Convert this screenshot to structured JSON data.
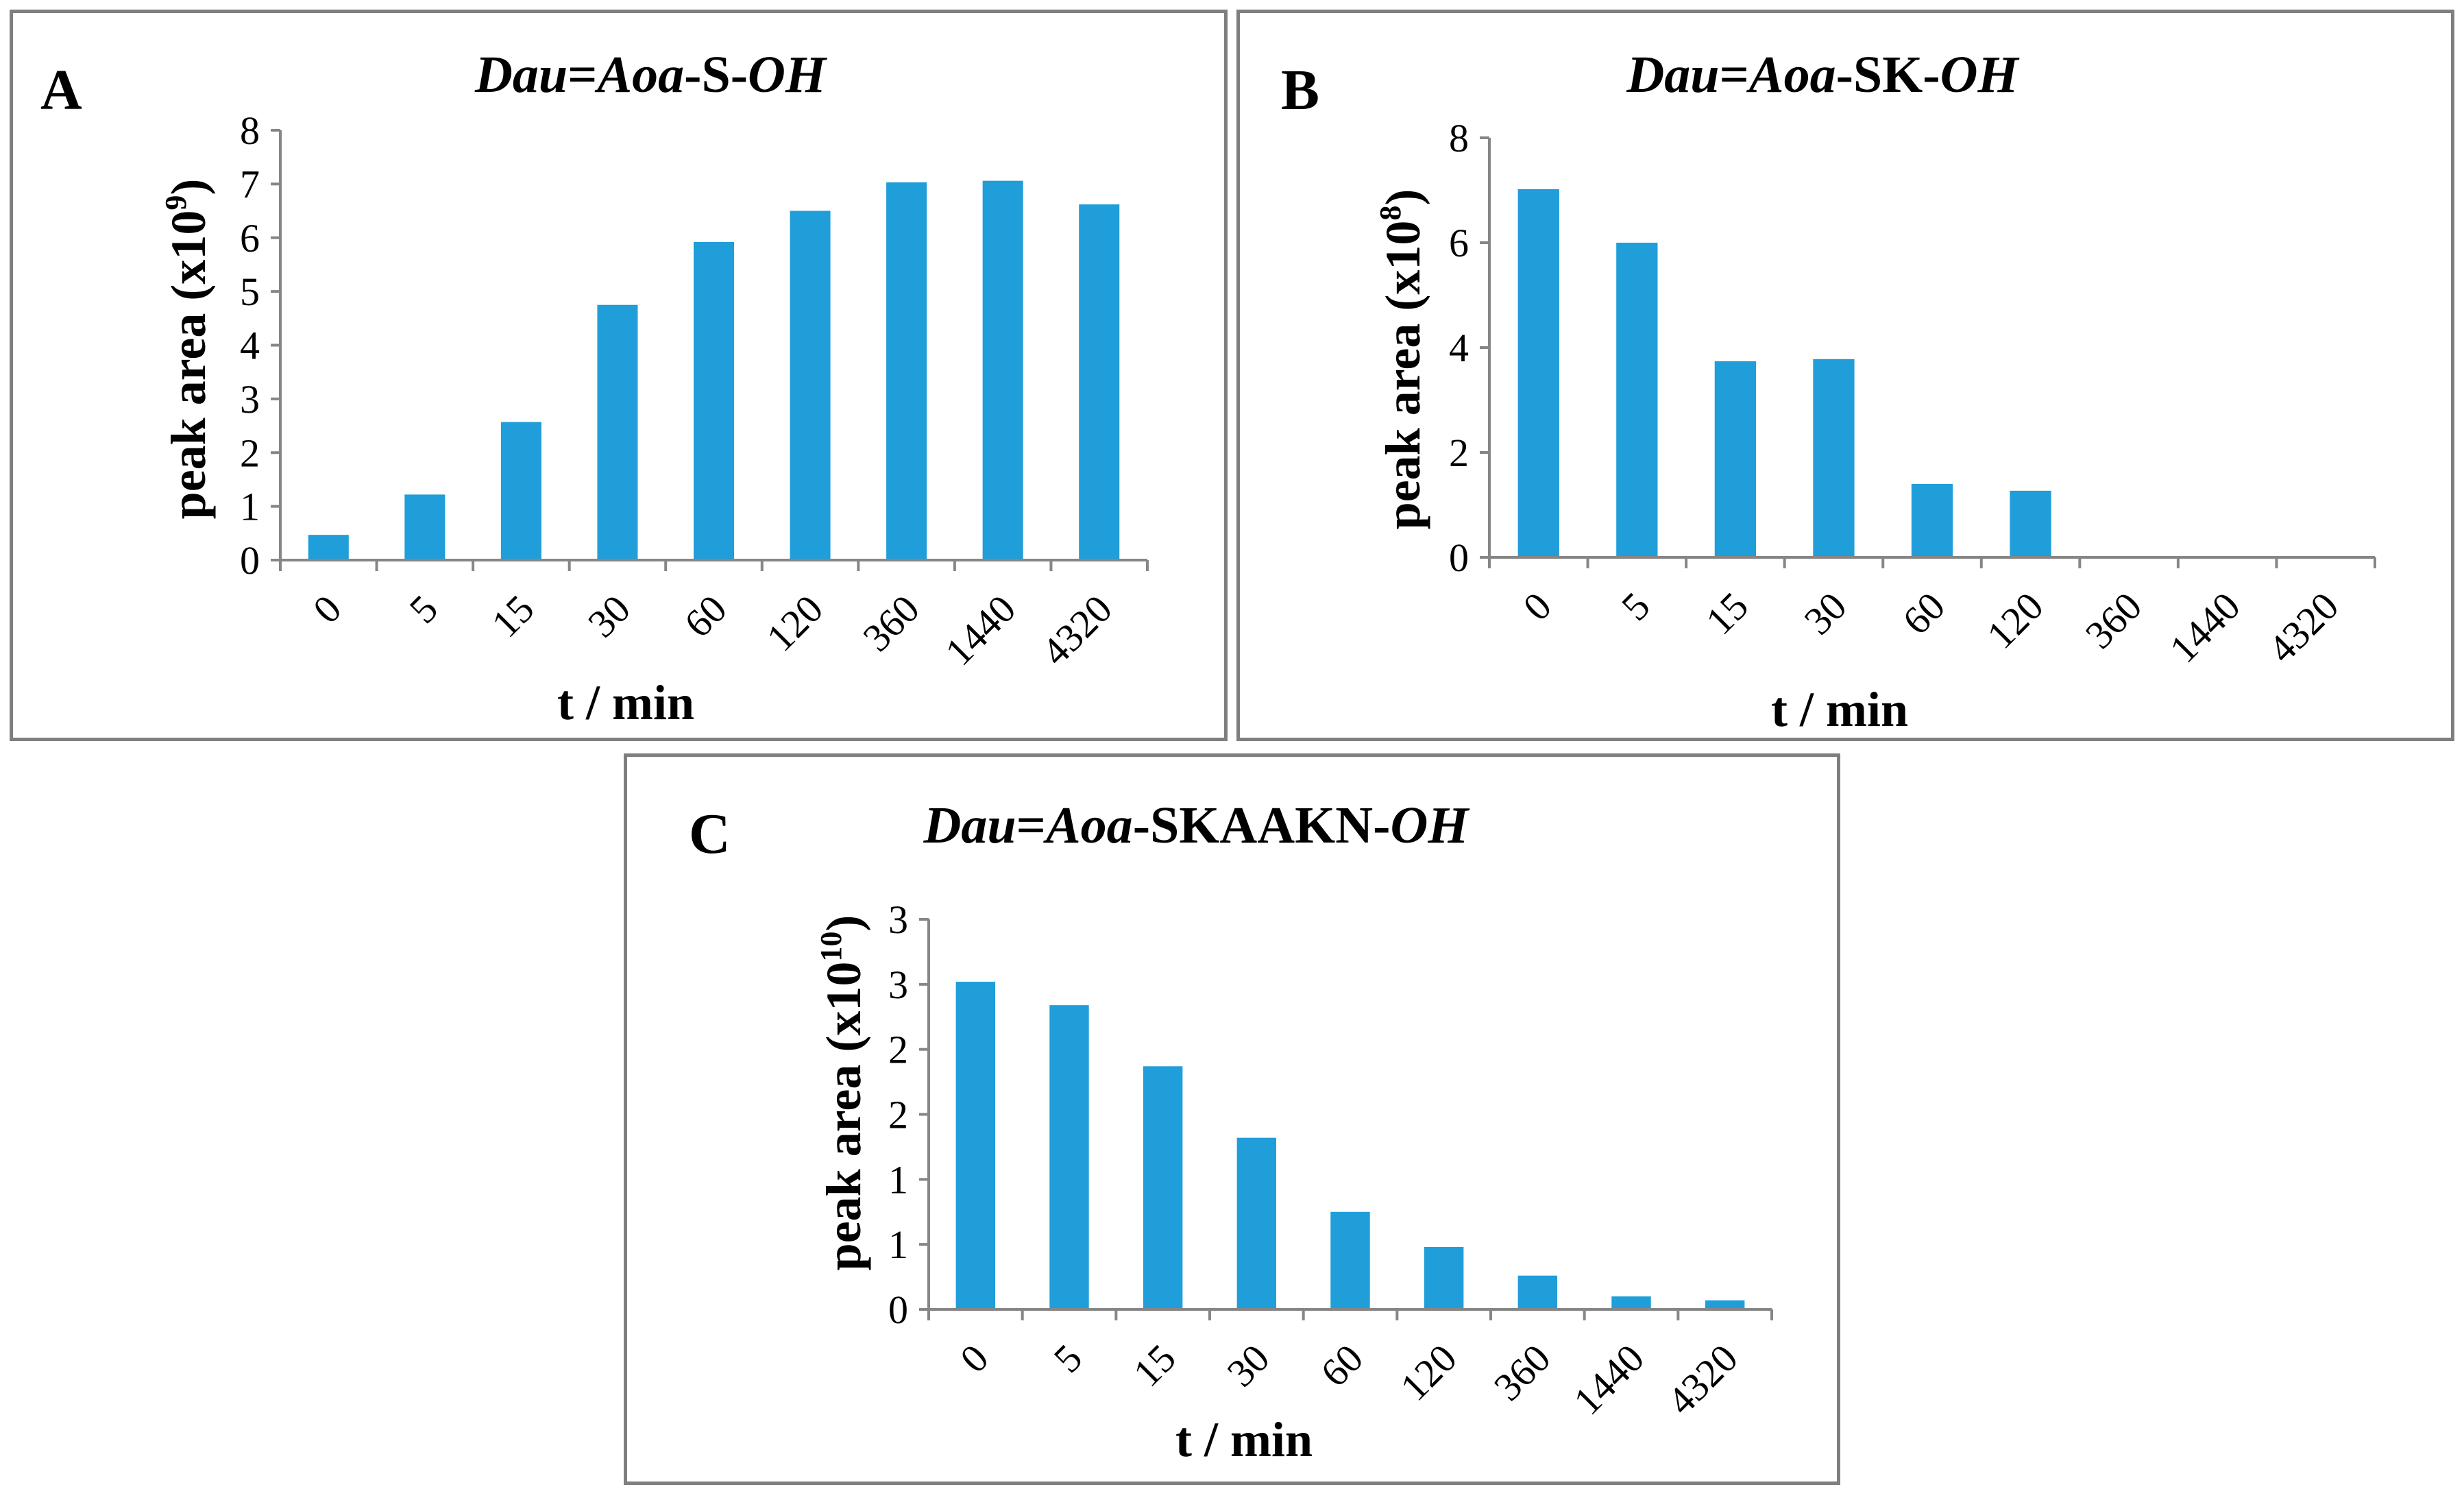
{
  "colors": {
    "bar": "#1f9ed9",
    "axis": "#868686",
    "frame": "#7f7f7f"
  },
  "panels": {
    "a": {
      "letter": "A",
      "title": {
        "p1": "Dau",
        "p2": "=",
        "p3": "Aoa",
        "p4": "-S-",
        "p5": "OH"
      },
      "ylabel": {
        "main": "peak area (x10",
        "sup": "9",
        "end": ")"
      },
      "xlabel": "t / min"
    },
    "b": {
      "letter": "B",
      "title": {
        "p1": "Dau",
        "p2": "=",
        "p3": "Aoa",
        "p4": "-SK-",
        "p5": "OH"
      },
      "ylabel": {
        "main": "peak area (x10",
        "sup": "8",
        "end": ")"
      },
      "xlabel": "t / min"
    },
    "c": {
      "letter": "C",
      "title": {
        "p1": "Dau",
        "p2": "=",
        "p3": "Aoa",
        "p4": "-SKAAKN-",
        "p5": "OH"
      },
      "ylabel": {
        "main": "peak area (x10",
        "sup": "10",
        "end": ")"
      },
      "xlabel": "t / min"
    }
  },
  "chart_data": [
    {
      "type": "bar",
      "panel": "A",
      "title": "Dau=Aoa-S-OH",
      "xlabel": "t / min",
      "ylabel": "peak area (x10^9)",
      "categories": [
        "0",
        "5",
        "15",
        "30",
        "60",
        "120",
        "360",
        "1440",
        "4320"
      ],
      "values": [
        0.47,
        1.22,
        2.57,
        4.75,
        5.92,
        6.5,
        7.03,
        7.06,
        6.62
      ],
      "ylim": [
        0,
        8
      ],
      "yticks": [
        0,
        1,
        2,
        3,
        4,
        5,
        6,
        7,
        8
      ],
      "ytick_labels": [
        "0",
        "1",
        "2",
        "3",
        "4",
        "5",
        "6",
        "7",
        "8"
      ]
    },
    {
      "type": "bar",
      "panel": "B",
      "title": "Dau=Aoa-SK-OH",
      "xlabel": "t / min",
      "ylabel": "peak area (x10^8)",
      "categories": [
        "0",
        "5",
        "15",
        "30",
        "60",
        "120",
        "360",
        "1440",
        "4320"
      ],
      "values": [
        7.02,
        6.0,
        3.74,
        3.78,
        1.4,
        1.27,
        0,
        0,
        0
      ],
      "ylim": [
        0,
        8
      ],
      "yticks": [
        0,
        2,
        4,
        6,
        8
      ],
      "ytick_labels": [
        "0",
        "2",
        "4",
        "6",
        "8"
      ]
    },
    {
      "type": "bar",
      "panel": "C",
      "title": "Dau=Aoa-SKAAKN-OH",
      "xlabel": "t / min",
      "ylabel": "peak area (x10^10)",
      "categories": [
        "0",
        "5",
        "15",
        "30",
        "60",
        "120",
        "360",
        "1440",
        "4320"
      ],
      "values": [
        2.52,
        2.34,
        1.87,
        1.32,
        0.75,
        0.48,
        0.26,
        0.1,
        0.07
      ],
      "ylim": [
        0,
        3
      ],
      "yticks": [
        0,
        0.5,
        1,
        1.5,
        2,
        2.5,
        3
      ],
      "ytick_labels": [
        "0",
        "1",
        "1",
        "2",
        "2",
        "3",
        "3"
      ]
    }
  ]
}
